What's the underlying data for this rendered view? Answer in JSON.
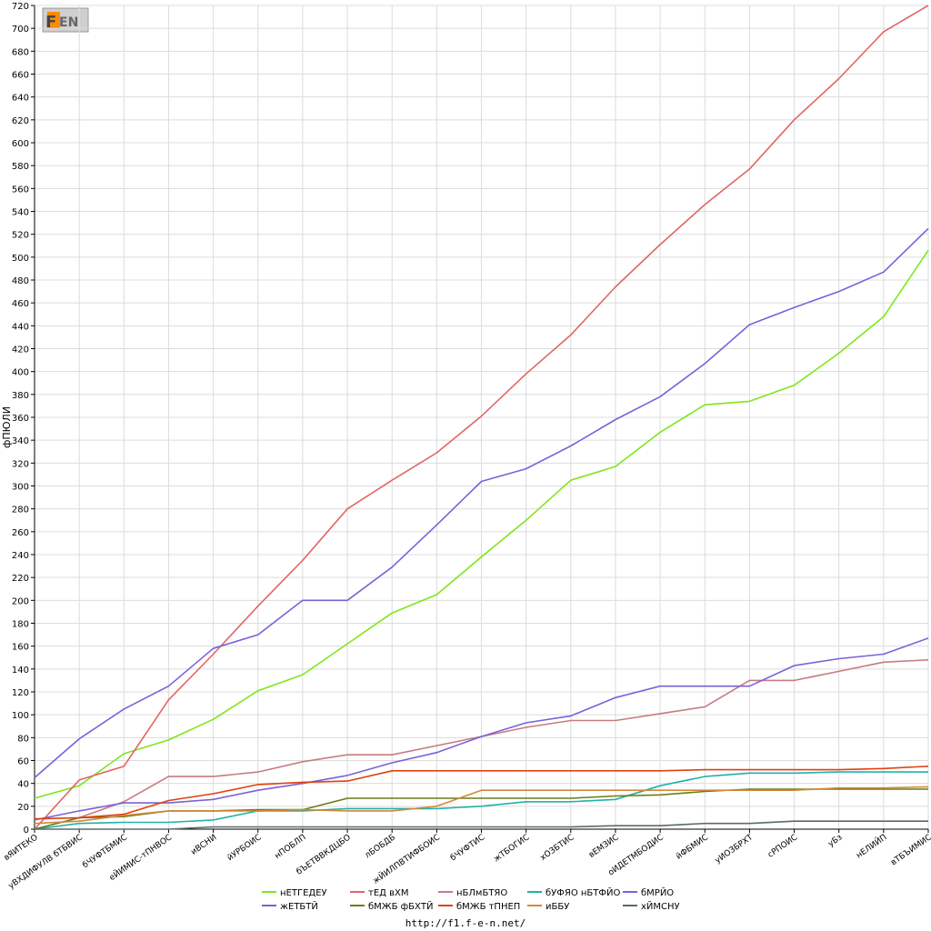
{
  "logo": {
    "text": "F1EN"
  },
  "footer": {
    "url": "http://f1.f-e-n.net/"
  },
  "chart_data": {
    "type": "line",
    "ylabel": "фПЮЛИ",
    "ylim": [
      0,
      720
    ],
    "ytick_step": 20,
    "grid": true,
    "legend_position": "bottom",
    "categories": [
      "вЯИТЕКО",
      "уВХДИФУЛВ бТБВИС",
      "бЧУФТБМИС",
      "еЙИМИС-тПНВОС",
      "иВСНИ",
      "йУРБОИС",
      "нПОБЛП",
      "бЪЕТВВКДЦБО",
      "лБОБДБ",
      "жЙИЛПВТИФБОИС",
      "бЧУФТИС",
      "жТБОГИС",
      "хОЗБТИС",
      "вЕМЗИС",
      "оИДЕТМБОДИС",
      "йФБМИС",
      "уИОЗБРХТ",
      "сРПОИС",
      "уБз",
      "нЕЛИЙП",
      "вТБЪИМИС"
    ],
    "series": [
      {
        "name": "нЕТГЕДЕУ",
        "color": "#7fe61a",
        "values": [
          27,
          38,
          66,
          78,
          96,
          121,
          135,
          162,
          189,
          205,
          238,
          270,
          305,
          317,
          347,
          371,
          374,
          388,
          416,
          448,
          506
        ]
      },
      {
        "name": "тЕД вХМ",
        "color": "#e06666",
        "values": [
          0,
          43,
          55,
          113,
          153,
          195,
          235,
          280,
          305,
          329,
          361,
          398,
          432,
          474,
          511,
          546,
          577,
          620,
          656,
          697,
          720
        ]
      },
      {
        "name": "нБЛмБТЯО",
        "color": "#c77b82",
        "values": [
          0,
          10,
          24,
          46,
          46,
          50,
          59,
          65,
          65,
          73,
          81,
          89,
          95,
          95,
          101,
          107,
          130,
          130,
          138,
          146,
          148
        ]
      },
      {
        "name": "бУФЯО нБТФЙО",
        "color": "#20b2aa",
        "values": [
          0,
          5,
          6,
          6,
          8,
          16,
          16,
          18,
          18,
          18,
          20,
          24,
          24,
          26,
          38,
          46,
          49,
          49,
          50,
          50,
          50
        ]
      },
      {
        "name": "бМРЙО",
        "color": "#7b61d9",
        "values": [
          45,
          79,
          105,
          125,
          158,
          170,
          200,
          200,
          229,
          266,
          304,
          315,
          335,
          358,
          378,
          407,
          441,
          456,
          470,
          487,
          525
        ]
      },
      {
        "name": "жЕТБТЙ",
        "color": "#7b61d9",
        "values": [
          8,
          16,
          23,
          23,
          26,
          34,
          40,
          47,
          58,
          67,
          81,
          93,
          99,
          115,
          125,
          125,
          125,
          143,
          149,
          153,
          167
        ]
      },
      {
        "name": "бМЖБ фБХТЙ",
        "color": "#6b7d16",
        "values": [
          0,
          10,
          11,
          16,
          16,
          17,
          17,
          27,
          27,
          27,
          27,
          27,
          27,
          29,
          30,
          33,
          35,
          35,
          35,
          35,
          35
        ]
      },
      {
        "name": "бМЖБ тПНЕП",
        "color": "#e04010",
        "values": [
          9,
          10,
          13,
          25,
          31,
          39,
          41,
          42,
          51,
          51,
          51,
          51,
          51,
          51,
          51,
          52,
          52,
          52,
          52,
          53,
          55
        ]
      },
      {
        "name": "иББУ",
        "color": "#d2883a",
        "values": [
          5,
          7,
          12,
          16,
          16,
          16,
          17,
          16,
          16,
          20,
          34,
          34,
          34,
          34,
          34,
          34,
          34,
          34,
          36,
          36,
          37
        ]
      },
      {
        "name": "хЙМСНУ",
        "color": "#5a6a70",
        "values": [
          0,
          0,
          0,
          0,
          2,
          2,
          2,
          2,
          2,
          2,
          2,
          2,
          2,
          3,
          3,
          5,
          5,
          7,
          7,
          7,
          7
        ]
      }
    ]
  }
}
